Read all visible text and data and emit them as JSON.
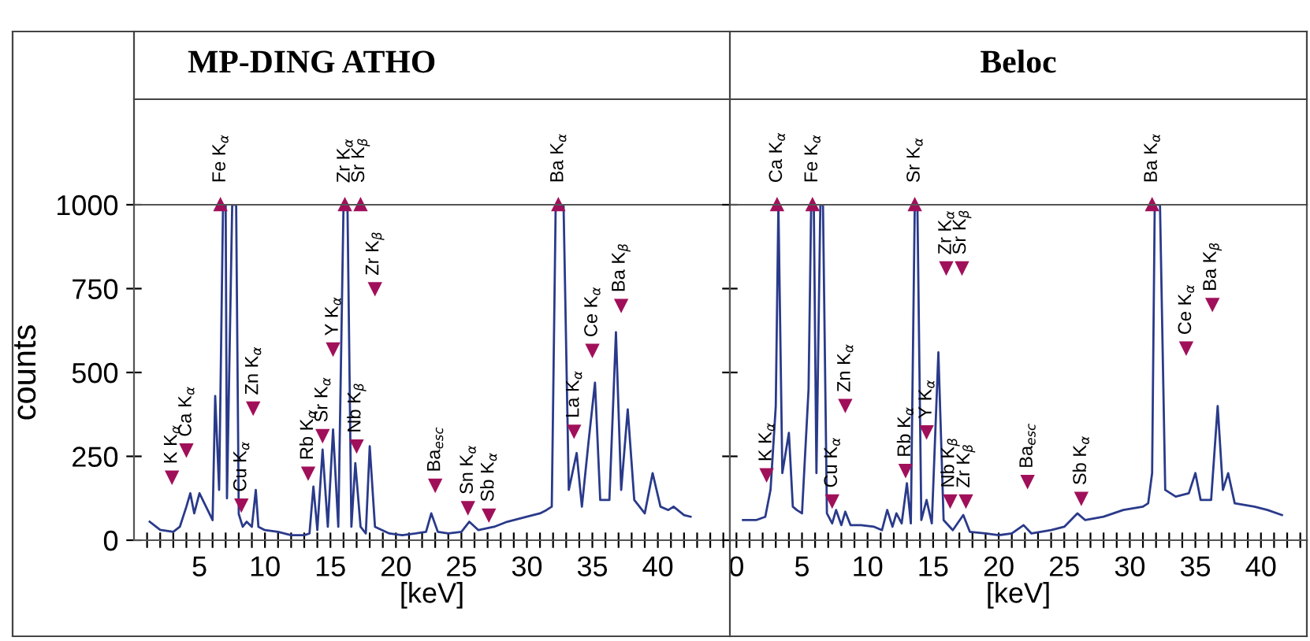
{
  "chart_data": [
    {
      "type": "line",
      "title": "MP-DING ATHO",
      "xlabel": "[keV]",
      "ylabel": "counts",
      "grid": false,
      "marker": "none",
      "line_style": "solid",
      "xlim": [
        0,
        45.5
      ],
      "ylim": [
        0,
        1000
      ],
      "xticks": [
        {
          "value": 1,
          "label": null
        },
        {
          "value": 2,
          "label": null
        },
        {
          "value": 3,
          "label": null
        },
        {
          "value": 4,
          "label": null
        },
        5,
        {
          "value": 6,
          "label": null
        },
        {
          "value": 7,
          "label": null
        },
        {
          "value": 8,
          "label": null
        },
        {
          "value": 9,
          "label": null
        },
        10,
        {
          "value": 11,
          "label": null
        },
        {
          "value": 12,
          "label": null
        },
        {
          "value": 13,
          "label": null
        },
        {
          "value": 14,
          "label": null
        },
        15,
        {
          "value": 16,
          "label": null
        },
        {
          "value": 17,
          "label": null
        },
        {
          "value": 18,
          "label": null
        },
        {
          "value": 19,
          "label": null
        },
        20,
        {
          "value": 21,
          "label": null
        },
        {
          "value": 22,
          "label": null
        },
        {
          "value": 23,
          "label": null
        },
        {
          "value": 24,
          "label": null
        },
        25,
        {
          "value": 26,
          "label": null
        },
        {
          "value": 27,
          "label": null
        },
        {
          "value": 28,
          "label": null
        },
        {
          "value": 29,
          "label": null
        },
        30,
        {
          "value": 31,
          "label": null
        },
        {
          "value": 32,
          "label": null
        },
        {
          "value": 33,
          "label": null
        },
        {
          "value": 34,
          "label": null
        },
        35,
        {
          "value": 36,
          "label": null
        },
        {
          "value": 37,
          "label": null
        },
        {
          "value": 38,
          "label": null
        },
        {
          "value": 39,
          "label": null
        },
        40,
        {
          "value": 41,
          "label": null
        },
        {
          "value": 42,
          "label": null
        },
        {
          "value": 43,
          "label": null
        },
        {
          "value": 44,
          "label": null
        },
        {
          "value": 45,
          "label": null
        }
      ],
      "yticks": [
        0,
        250,
        500,
        750,
        1000
      ],
      "series": [
        {
          "color": "#2a3a8a",
          "x": [
            1.2,
            2.0,
            3.0,
            3.5,
            4.0,
            4.3,
            4.6,
            5.0,
            5.5,
            6.0,
            6.2,
            6.5,
            6.8,
            7.0,
            7.1,
            7.5,
            7.8,
            8.0,
            8.3,
            8.6,
            9.0,
            9.3,
            9.5,
            10,
            11,
            12,
            13,
            13.4,
            13.7,
            14.0,
            14.4,
            14.8,
            15.2,
            15.6,
            16.0,
            16.3,
            16.6,
            16.9,
            17.3,
            17.7,
            18.0,
            18.4,
            19.5,
            20.5,
            21.5,
            22.3,
            22.7,
            23.2,
            24,
            25,
            25.6,
            26.3,
            27.5,
            28.5,
            30,
            31,
            31.5,
            31.9,
            32.2,
            32.8,
            33.2,
            33.8,
            34.2,
            34.7,
            35.2,
            35.6,
            36.3,
            36.8,
            37.2,
            37.7,
            38.2,
            39.0,
            39.6,
            40.2,
            40.8,
            41.2,
            42.0,
            42.5
          ],
          "values": [
            55,
            31,
            25,
            40,
            100,
            140,
            80,
            140,
            100,
            60,
            430,
            150,
            1000,
            1000,
            125,
            1000,
            1000,
            78,
            40,
            55,
            40,
            150,
            40,
            30,
            25,
            15,
            15,
            20,
            160,
            30,
            270,
            40,
            330,
            40,
            1000,
            1000,
            40,
            230,
            40,
            20,
            280,
            40,
            20,
            15,
            20,
            25,
            80,
            25,
            20,
            25,
            55,
            30,
            40,
            55,
            70,
            80,
            90,
            100,
            1000,
            1000,
            150,
            260,
            100,
            290,
            470,
            120,
            120,
            620,
            150,
            390,
            120,
            80,
            200,
            100,
            90,
            100,
            75,
            70
          ]
        }
      ],
      "annotations": [
        {
          "text": "K K$_{α}$",
          "x": 2.9,
          "y": 188
        },
        {
          "text": "Ca K$_{α}$",
          "x": 4.0,
          "y": 269
        },
        {
          "text": "Fe K$_{α}$",
          "x": 6.6,
          "y": 1000
        },
        {
          "text": "Cu K$_{α}$",
          "x": 8.2,
          "y": 105
        },
        {
          "text": "Zn K$_{α}$",
          "x": 9.1,
          "y": 394
        },
        {
          "text": "Rb K$_{α}$",
          "x": 13.3,
          "y": 200
        },
        {
          "text": "Sr K$_{α}$",
          "x": 14.4,
          "y": 312
        },
        {
          "text": "Y K$_{α}$",
          "x": 15.2,
          "y": 570
        },
        {
          "text": "Zr K$_{α}$",
          "x": 16.1,
          "y": 1000
        },
        {
          "text": "Sr K$_{β}$",
          "x": 17.3,
          "y": 1000
        },
        {
          "text": "Nb K$_{β}$",
          "x": 17.0,
          "y": 281
        },
        {
          "text": "Zr K$_{β}$",
          "x": 18.4,
          "y": 750
        },
        {
          "text": "Ba$_{esc}$",
          "x": 23.0,
          "y": 164
        },
        {
          "text": "Sn K$_{α}$",
          "x": 25.5,
          "y": 97
        },
        {
          "text": "Sb K$_{α}$",
          "x": 27.1,
          "y": 75
        },
        {
          "text": "Ba K$_{α}$",
          "x": 32.4,
          "y": 1000
        },
        {
          "text": "La K$_{α}$",
          "x": 33.6,
          "y": 325
        },
        {
          "text": "Ce K$_{α}$",
          "x": 35.0,
          "y": 566
        },
        {
          "text": "Ba K$_{β}$",
          "x": 37.2,
          "y": 700
        }
      ]
    },
    {
      "type": "line",
      "title": "Beloc",
      "xlabel": "[keV]",
      "grid": false,
      "marker": "none",
      "line_style": "solid",
      "tick_labels": "x",
      "xlim": [
        -0.5,
        43.5
      ],
      "ylim": [
        0,
        1000
      ],
      "xticks": [
        0,
        {
          "value": 1,
          "label": null
        },
        {
          "value": 2,
          "label": null
        },
        {
          "value": 3,
          "label": null
        },
        {
          "value": 4,
          "label": null
        },
        5,
        {
          "value": 6,
          "label": null
        },
        {
          "value": 7,
          "label": null
        },
        {
          "value": 8,
          "label": null
        },
        {
          "value": 9,
          "label": null
        },
        10,
        {
          "value": 11,
          "label": null
        },
        {
          "value": 12,
          "label": null
        },
        {
          "value": 13,
          "label": null
        },
        {
          "value": 14,
          "label": null
        },
        15,
        {
          "value": 16,
          "label": null
        },
        {
          "value": 17,
          "label": null
        },
        {
          "value": 18,
          "label": null
        },
        {
          "value": 19,
          "label": null
        },
        20,
        {
          "value": 21,
          "label": null
        },
        {
          "value": 22,
          "label": null
        },
        {
          "value": 23,
          "label": null
        },
        {
          "value": 24,
          "label": null
        },
        25,
        {
          "value": 26,
          "label": null
        },
        {
          "value": 27,
          "label": null
        },
        {
          "value": 28,
          "label": null
        },
        {
          "value": 29,
          "label": null
        },
        30,
        {
          "value": 31,
          "label": null
        },
        {
          "value": 32,
          "label": null
        },
        {
          "value": 33,
          "label": null
        },
        {
          "value": 34,
          "label": null
        },
        35,
        {
          "value": 36,
          "label": null
        },
        {
          "value": 37,
          "label": null
        },
        {
          "value": 38,
          "label": null
        },
        {
          "value": 39,
          "label": null
        },
        40,
        {
          "value": 41,
          "label": null
        },
        {
          "value": 42,
          "label": null
        },
        {
          "value": 43,
          "label": null
        }
      ],
      "yticks": [
        0,
        250,
        500,
        750,
        1000
      ],
      "series": [
        {
          "color": "#2a3a8a",
          "x": [
            0.5,
            1.5,
            2.2,
            2.6,
            3.0,
            3.2,
            3.5,
            4.0,
            4.3,
            4.6,
            5.0,
            5.5,
            5.7,
            5.9,
            6.1,
            6.4,
            6.6,
            6.9,
            7.3,
            7.6,
            8.0,
            8.3,
            8.7,
            9.5,
            10.5,
            11.1,
            11.5,
            11.9,
            12.2,
            12.6,
            13.0,
            13.3,
            13.6,
            13.8,
            14.1,
            14.5,
            14.9,
            15.4,
            15.8,
            16.5,
            17.3,
            17.8,
            19,
            20,
            21,
            21.9,
            22.5,
            24,
            25,
            26.0,
            26.6,
            28,
            29.5,
            31,
            31.4,
            31.7,
            31.9,
            32.3,
            32.7,
            33.5,
            34.5,
            35.0,
            35.4,
            36.2,
            36.7,
            37.1,
            37.5,
            38.0,
            39.5,
            40.5,
            41.6
          ],
          "values": [
            60,
            60,
            70,
            150,
            400,
            1000,
            200,
            320,
            100,
            90,
            80,
            450,
            1000,
            1000,
            200,
            1000,
            1000,
            80,
            50,
            90,
            45,
            85,
            45,
            45,
            40,
            30,
            90,
            40,
            80,
            50,
            170,
            50,
            1000,
            1000,
            60,
            120,
            50,
            560,
            60,
            30,
            75,
            25,
            20,
            15,
            20,
            45,
            20,
            30,
            40,
            80,
            60,
            70,
            90,
            100,
            110,
            200,
            1000,
            1000,
            150,
            130,
            140,
            200,
            120,
            120,
            400,
            150,
            200,
            110,
            100,
            90,
            75
          ]
        }
      ],
      "annotations": [
        {
          "text": "K K$_{α}$",
          "x": 2.3,
          "y": 195
        },
        {
          "text": "Ca K$_{α}$",
          "x": 3.1,
          "y": 1000
        },
        {
          "text": "Fe K$_{α}$",
          "x": 5.8,
          "y": 1000
        },
        {
          "text": "Cu K$_{α}$",
          "x": 7.3,
          "y": 117
        },
        {
          "text": "Zn K$_{α}$",
          "x": 8.3,
          "y": 402
        },
        {
          "text": "Rb K$_{α}$",
          "x": 12.9,
          "y": 208
        },
        {
          "text": "Sr K$_{α}$",
          "x": 13.6,
          "y": 1000
        },
        {
          "text": "Y K$_{α}$",
          "x": 14.5,
          "y": 323
        },
        {
          "text": "Zr K$_{α}$",
          "x": 16.0,
          "y": 812
        },
        {
          "text": "Sr K$_{β}$",
          "x": 17.2,
          "y": 812
        },
        {
          "text": "Nb K$_{β}$",
          "x": 16.3,
          "y": 117
        },
        {
          "text": "Zr K$_{β}$",
          "x": 17.5,
          "y": 117
        },
        {
          "text": "Ba$_{esc}$",
          "x": 22.2,
          "y": 175
        },
        {
          "text": "Sb K$_{α}$",
          "x": 26.3,
          "y": 125
        },
        {
          "text": "Ba K$_{α}$",
          "x": 31.7,
          "y": 1000
        },
        {
          "text": "Ce K$_{α}$",
          "x": 34.3,
          "y": 573
        },
        {
          "text": "Ba K$_{β}$",
          "x": 36.3,
          "y": 703
        }
      ]
    }
  ]
}
